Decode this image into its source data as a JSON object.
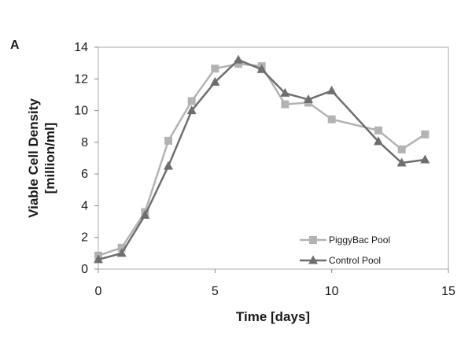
{
  "panel_label": "A",
  "chart_data": {
    "type": "line",
    "xlabel": "Time [days]",
    "ylabel_lines": [
      "Viable Cell Density",
      "[million/ml]"
    ],
    "xlim": [
      0,
      15
    ],
    "ylim": [
      0,
      14
    ],
    "xticks": [
      0,
      5,
      10,
      15
    ],
    "yticks": [
      0,
      2,
      4,
      6,
      8,
      10,
      12,
      14
    ],
    "grid": false,
    "legend_position": "bottom-right",
    "series": [
      {
        "name": "PiggyBac Pool",
        "marker": "square",
        "color": "#b3b3b3",
        "x": [
          0,
          1,
          2,
          3,
          4,
          5,
          6,
          7,
          8,
          9,
          10,
          12,
          13,
          14
        ],
        "y": [
          0.85,
          1.35,
          3.6,
          8.1,
          10.6,
          12.65,
          12.95,
          12.8,
          10.4,
          10.5,
          9.45,
          8.75,
          7.55,
          8.5
        ]
      },
      {
        "name": "Control Pool",
        "marker": "triangle",
        "color": "#6e6e6e",
        "x": [
          0,
          1,
          2,
          3,
          4,
          5,
          6,
          7,
          8,
          9,
          10,
          12,
          13,
          14
        ],
        "y": [
          0.6,
          1.0,
          3.4,
          6.5,
          10.0,
          11.8,
          13.2,
          12.6,
          11.1,
          10.7,
          11.25,
          8.05,
          6.7,
          6.9
        ]
      }
    ]
  }
}
